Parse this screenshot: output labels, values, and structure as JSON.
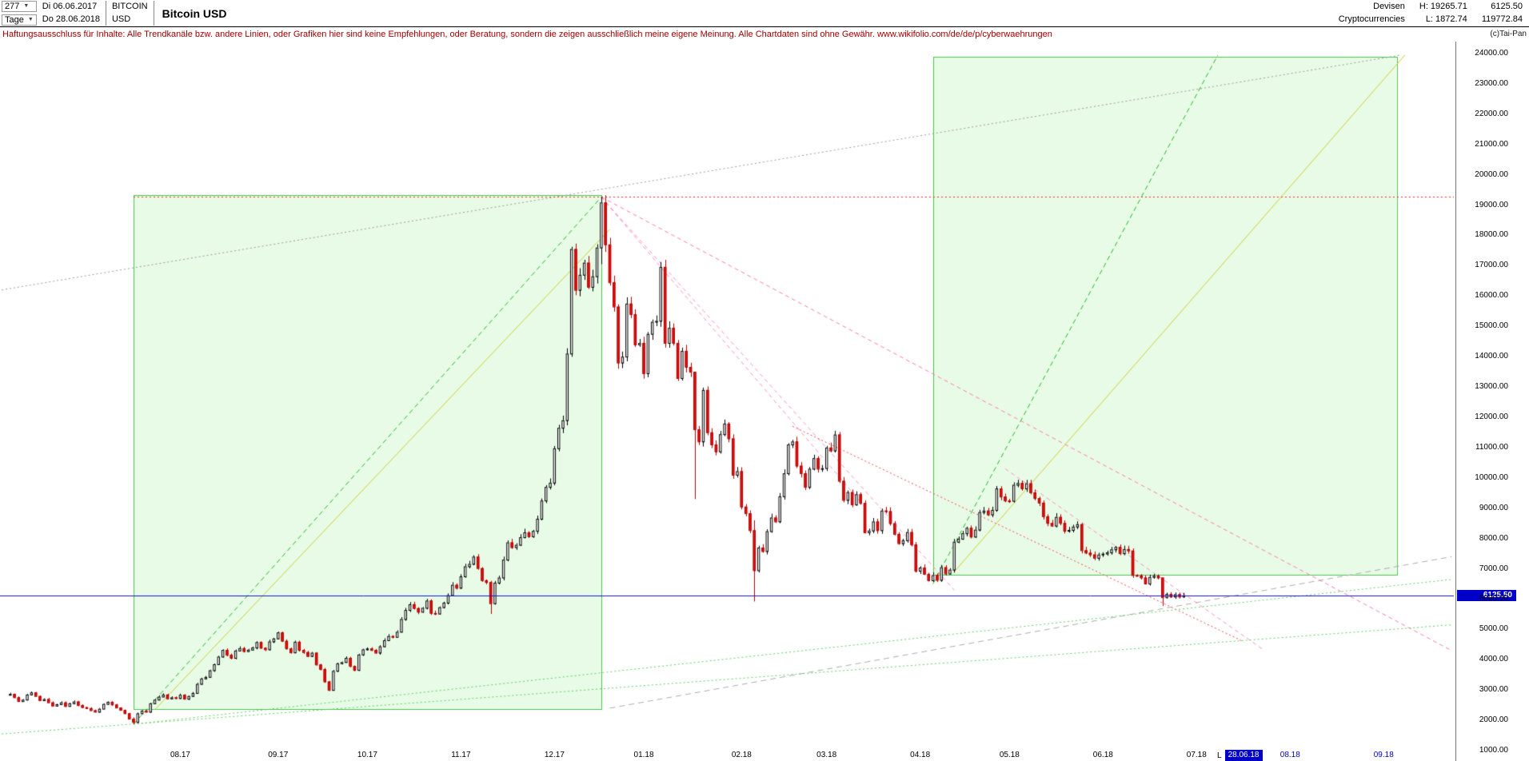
{
  "header": {
    "bars_count": "277",
    "period_label": "Tage",
    "start_date": "Di 06.06.2017",
    "end_date": "Do 28.06.2018",
    "symbol_line1": "BITCOIN",
    "symbol_line2": "USD",
    "title": "Bitcoin USD",
    "category": "Devisen",
    "subcategory": "Cryptocurrencies",
    "high": "H: 19265.71",
    "low": "L: 1872.74",
    "last": "6125.50",
    "value2": "119772.84"
  },
  "disclaimer": {
    "text": "Haftungsausschluss für Inhalte: Alle Trendkanäle bzw. andere Linien, oder Grafiken hier sind keine Empfehlungen, oder Beratung, sondern die zeigen ausschließlich meine eigene Meinung. Alle Chartdaten sind ohne Gewähr.",
    "url": "www.wikifolio.com/de/de/p/cyberwaehrungen",
    "copyright": "(c)Tai-Pan"
  },
  "chart_data": {
    "type": "candlestick",
    "title": "Bitcoin USD",
    "symbol": "BITCOIN USD",
    "period": "Tage",
    "bars": 277,
    "date_start": "06.06.2017",
    "date_end": "28.06.2018",
    "high": 19265.71,
    "low": 1872.74,
    "last": 6125.5,
    "x_range": [
      -2.4,
      339.5
    ],
    "y_axis": {
      "min": 1000,
      "max": 24000,
      "step": 1000,
      "tick_labels": [
        "1000.00",
        "2000.00",
        "3000.00",
        "4000.00",
        "5000.00",
        "6000.00",
        "7000.00",
        "8000.00",
        "9000.00",
        "10000.00",
        "11000.00",
        "12000.00",
        "13000.00",
        "14000.00",
        "15000.00",
        "16000.00",
        "17000.00",
        "18000.00",
        "19000.00",
        "20000.00",
        "21000.00",
        "22000.00",
        "23000.00",
        "24000.00"
      ]
    },
    "x_axis": {
      "labels": [
        {
          "text": "08.17",
          "bar": 40
        },
        {
          "text": "09.17",
          "bar": 63
        },
        {
          "text": "10.17",
          "bar": 84
        },
        {
          "text": "11.17",
          "bar": 106
        },
        {
          "text": "12.17",
          "bar": 128
        },
        {
          "text": "01.18",
          "bar": 149
        },
        {
          "text": "02.18",
          "bar": 172
        },
        {
          "text": "03.18",
          "bar": 192
        },
        {
          "text": "04.18",
          "bar": 214
        },
        {
          "text": "05.18",
          "bar": 235
        },
        {
          "text": "06.18",
          "bar": 257
        },
        {
          "text": "07.18",
          "bar": 279
        },
        {
          "text": "08.18",
          "bar": 301,
          "future": true
        },
        {
          "text": "09.18",
          "bar": 323,
          "future": true
        }
      ]
    },
    "closes": [
      2870,
      2760,
      2630,
      2680,
      2850,
      2920,
      2800,
      2660,
      2700,
      2590,
      2480,
      2530,
      2590,
      2470,
      2560,
      2620,
      2500,
      2430,
      2400,
      2330,
      2280,
      2380,
      2540,
      2610,
      2520,
      2420,
      2340,
      2230,
      2050,
      1940,
      2230,
      2320,
      2280,
      2560,
      2680,
      2780,
      2850,
      2720,
      2757,
      2730,
      2840,
      2710,
      2800,
      2900,
      3200,
      3380,
      3430,
      3650,
      3850,
      4100,
      4320,
      4160,
      4060,
      4300,
      4380,
      4280,
      4330,
      4400,
      4580,
      4390,
      4340,
      4600,
      4700,
      4900,
      4620,
      4370,
      4240,
      4590,
      4320,
      4250,
      4120,
      4230,
      3840,
      3690,
      3280,
      3000,
      3630,
      3880,
      3920,
      4060,
      3790,
      3660,
      4170,
      4340,
      4370,
      4320,
      4230,
      4440,
      4640,
      4780,
      4750,
      4920,
      5340,
      5640,
      5830,
      5700,
      5580,
      5710,
      5950,
      5540,
      5520,
      5730,
      5880,
      6130,
      6470,
      6370,
      6750,
      7080,
      7160,
      7400,
      7020,
      6620,
      6560,
      5860,
      6540,
      6710,
      7300,
      7870,
      7710,
      7790,
      8040,
      8200,
      8070,
      8250,
      8650,
      9250,
      9700,
      9840,
      10975,
      11650,
      11900,
      14100,
      17550,
      16200,
      16700,
      17100,
      16300,
      16650,
      17600,
      19086,
      17700,
      16450,
      15650,
      13800,
      14000,
      15750,
      15400,
      14400,
      14450,
      13450,
      14750,
      15150,
      15180,
      16960,
      14450,
      14950,
      14450,
      13290,
      14190,
      13660,
      13500,
      11600,
      11200,
      12900,
      11500,
      11100,
      10870,
      11440,
      11790,
      11300,
      10100,
      10220,
      9050,
      8830,
      8270,
      6950,
      7700,
      7580,
      8240,
      8690,
      8560,
      9390,
      10150,
      11100,
      11200,
      10400,
      10150,
      9700,
      10300,
      10650,
      10300,
      10320,
      11000,
      10900,
      11430,
      9900,
      9270,
      9530,
      9120,
      9460,
      9170,
      8200,
      8260,
      8560,
      8270,
      8920,
      8900,
      8500,
      8150,
      7840,
      7940,
      8210,
      7800,
      6930,
      7040,
      6830,
      6620,
      6790,
      6630,
      7050,
      6840,
      6970,
      7890,
      7990,
      8170,
      8350,
      8060,
      8290,
      8870,
      8920,
      8790,
      8940,
      9650,
      9380,
      9250,
      9240,
      9770,
      9830,
      9650,
      9820,
      9520,
      9330,
      9180,
      8730,
      8510,
      8420,
      8710,
      8510,
      8250,
      8280,
      8390,
      8470,
      7610,
      7530,
      7470,
      7360,
      7470,
      7500,
      7540,
      7640,
      7720,
      7510,
      7650,
      7600,
      6790,
      6780,
      6710,
      6510,
      6730,
      6770,
      6710,
      6060,
      6170,
      6080,
      6160,
      6080,
      6125.5
    ],
    "wick_overrides": {
      "29": [
        2100,
        1872.74
      ],
      "76": [
        3660,
        2975
      ],
      "113": [
        6600,
        5510
      ],
      "139": [
        19265.71,
        17050
      ],
      "161": [
        12700,
        9300
      ],
      "175": [
        8600,
        5920
      ],
      "271": [
        6480,
        5775
      ]
    },
    "colors": {
      "up_fill": "#ffffff",
      "up_stroke": "#000000",
      "down_fill": "#e81212",
      "down_stroke": "#b00000",
      "blue_line": "#1414cc",
      "tag_bg": "#0000c8",
      "future_label": "#0000cc"
    },
    "overlays": {
      "boxes": [
        {
          "x1": 29,
          "p1": 2380,
          "x2": 139,
          "p2": 19330,
          "stroke": "#49c549",
          "fill": "rgba(144,238,144,0.22)"
        },
        {
          "x1": 217,
          "p1": 6800,
          "x2": 326,
          "p2": 23890,
          "stroke": "#49c549",
          "fill": "rgba(144,238,144,0.22)"
        }
      ],
      "lines": [
        {
          "x1": 29,
          "p1": 1872,
          "x2": 139,
          "p2": 19265,
          "color": "#22bb22",
          "dash": [
            6,
            4
          ]
        },
        {
          "x1": 34,
          "p1": 2350,
          "x2": 141,
          "p2": 18200,
          "color": "#cfcf2e",
          "dash": null
        },
        {
          "x1": 139,
          "p1": 19265,
          "x2": 222,
          "p2": 6300,
          "color": "#ff8ec0",
          "dash": [
            5,
            4
          ]
        },
        {
          "x1": 139,
          "p1": 19265,
          "x2": 200,
          "p2": 9200,
          "color": "#ff8ec0",
          "dash": [
            5,
            4
          ]
        },
        {
          "x1": 139,
          "p1": 19265,
          "x2": 339,
          "p2": 4300,
          "color": "#ff7ab0",
          "dash": [
            5,
            4
          ]
        },
        {
          "x1": 184,
          "p1": 11700,
          "x2": 290,
          "p2": 4600,
          "color": "#ff4444",
          "dash": [
            2,
            3
          ]
        },
        {
          "x1": -2,
          "p1": 16200,
          "x2": 327,
          "p2": 23950,
          "color": "#9a9a9a",
          "dash": [
            2,
            3
          ]
        },
        {
          "x1": 141,
          "p1": 2400,
          "x2": 339,
          "p2": 7400,
          "color": "#ababab",
          "dash": [
            7,
            5
          ]
        },
        {
          "x1": 29,
          "p1": 1872,
          "x2": 339,
          "p2": 6650,
          "color": "#5ecf5e",
          "dash": [
            2,
            3
          ]
        },
        {
          "x1": -2,
          "p1": 1550,
          "x2": 339,
          "p2": 5150,
          "color": "#5ecf5e",
          "dash": [
            2,
            3
          ]
        },
        {
          "x1": 217,
          "p1": 6500,
          "x2": 284,
          "p2": 23950,
          "color": "#22bb22",
          "dash": [
            6,
            4
          ]
        },
        {
          "x1": 222,
          "p1": 6900,
          "x2": 328,
          "p2": 23950,
          "color": "#cfcf2e",
          "dash": null
        },
        {
          "x1": 234,
          "p1": 10300,
          "x2": 295,
          "p2": 4300,
          "color": "#ff8ec0",
          "dash": [
            5,
            4
          ]
        }
      ],
      "hlines": [
        {
          "price": 19265.71,
          "x1": 29,
          "x2": 339.5,
          "color": "#ff2222",
          "dash": [
            2,
            3
          ],
          "above": false
        },
        {
          "price": 6125.5,
          "x1": -2.4,
          "x2": 339.5,
          "color": "#1414cc",
          "dash": null,
          "above": true
        }
      ]
    },
    "price_tag": {
      "text": "6125.50",
      "price": 6125.5
    },
    "last_marker": {
      "prefix": "L",
      "label": "28.06.18"
    }
  }
}
